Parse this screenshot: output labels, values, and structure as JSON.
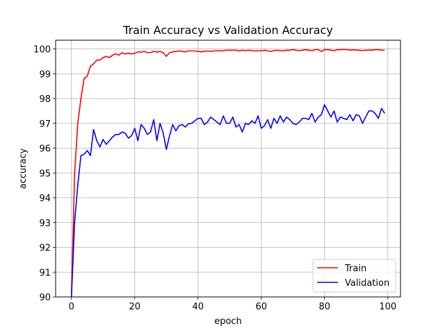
{
  "chart_data": {
    "type": "line",
    "title": "Train Accuracy vs Validation Accuracy",
    "xlabel": "epoch",
    "ylabel": "accuracy",
    "xlim": [
      -5,
      104
    ],
    "ylim": [
      90,
      100.35
    ],
    "xticks": [
      0,
      20,
      40,
      60,
      80,
      100
    ],
    "yticks": [
      90,
      91,
      92,
      93,
      94,
      95,
      96,
      97,
      98,
      99,
      100
    ],
    "grid": true,
    "legend_position": "lower-right",
    "x": [
      0,
      1,
      2,
      3,
      4,
      5,
      6,
      7,
      8,
      9,
      10,
      11,
      12,
      13,
      14,
      15,
      16,
      17,
      18,
      19,
      20,
      21,
      22,
      23,
      24,
      25,
      26,
      27,
      28,
      29,
      30,
      31,
      32,
      33,
      34,
      35,
      36,
      37,
      38,
      39,
      40,
      41,
      42,
      43,
      44,
      45,
      46,
      47,
      48,
      49,
      50,
      51,
      52,
      53,
      54,
      55,
      56,
      57,
      58,
      59,
      60,
      61,
      62,
      63,
      64,
      65,
      66,
      67,
      68,
      69,
      70,
      71,
      72,
      73,
      74,
      75,
      76,
      77,
      78,
      79,
      80,
      81,
      82,
      83,
      84,
      85,
      86,
      87,
      88,
      89,
      90,
      91,
      92,
      93,
      94,
      95,
      96,
      97,
      98,
      99
    ],
    "series": [
      {
        "name": "Train",
        "color": "#ff0000",
        "values": [
          90.0,
          95.0,
          97.0,
          98.0,
          98.8,
          98.9,
          99.3,
          99.4,
          99.55,
          99.55,
          99.65,
          99.7,
          99.65,
          99.75,
          99.8,
          99.75,
          99.85,
          99.8,
          99.82,
          99.8,
          99.82,
          99.88,
          99.87,
          99.9,
          99.85,
          99.85,
          99.9,
          99.87,
          99.9,
          99.85,
          99.7,
          99.85,
          99.88,
          99.9,
          99.92,
          99.9,
          99.88,
          99.92,
          99.92,
          99.92,
          99.9,
          99.88,
          99.9,
          99.92,
          99.9,
          99.92,
          99.93,
          99.92,
          99.93,
          99.95,
          99.95,
          99.95,
          99.95,
          99.92,
          99.95,
          99.93,
          99.95,
          99.93,
          99.92,
          99.93,
          99.92,
          99.95,
          99.92,
          99.9,
          99.93,
          99.95,
          99.93,
          99.92,
          99.95,
          99.95,
          99.97,
          99.95,
          99.93,
          99.95,
          99.97,
          99.95,
          99.93,
          99.97,
          99.97,
          99.9,
          99.97,
          99.97,
          99.95,
          99.93,
          99.97,
          99.97,
          99.98,
          99.97,
          99.95,
          99.97,
          99.95,
          99.95,
          99.93,
          99.95,
          99.95,
          99.95,
          99.97,
          99.97,
          99.95,
          99.95
        ]
      },
      {
        "name": "Validation",
        "color": "#0000ff",
        "values": [
          90.0,
          93.0,
          94.5,
          95.7,
          95.75,
          95.9,
          95.7,
          96.75,
          96.3,
          96.05,
          96.35,
          96.15,
          96.3,
          96.45,
          96.55,
          96.55,
          96.65,
          96.6,
          96.4,
          96.5,
          96.8,
          96.3,
          96.95,
          96.8,
          96.55,
          96.65,
          97.15,
          96.3,
          97.0,
          96.6,
          95.95,
          96.5,
          96.95,
          96.7,
          96.9,
          96.95,
          96.85,
          96.98,
          97.0,
          97.1,
          97.2,
          97.2,
          96.95,
          97.05,
          97.25,
          97.15,
          97.05,
          96.95,
          97.3,
          97.0,
          97.0,
          97.25,
          96.85,
          96.95,
          96.65,
          97.0,
          96.95,
          97.1,
          97.0,
          97.3,
          96.8,
          96.9,
          97.15,
          96.8,
          97.2,
          97.0,
          97.3,
          97.05,
          97.25,
          97.15,
          97.0,
          96.95,
          97.05,
          97.2,
          97.2,
          97.15,
          97.4,
          97.05,
          97.25,
          97.35,
          97.75,
          97.5,
          97.25,
          97.5,
          97.05,
          97.25,
          97.2,
          97.15,
          97.35,
          97.1,
          97.35,
          97.3,
          97.0,
          97.25,
          97.5,
          97.5,
          97.4,
          97.2,
          97.6,
          97.4
        ]
      }
    ]
  }
}
